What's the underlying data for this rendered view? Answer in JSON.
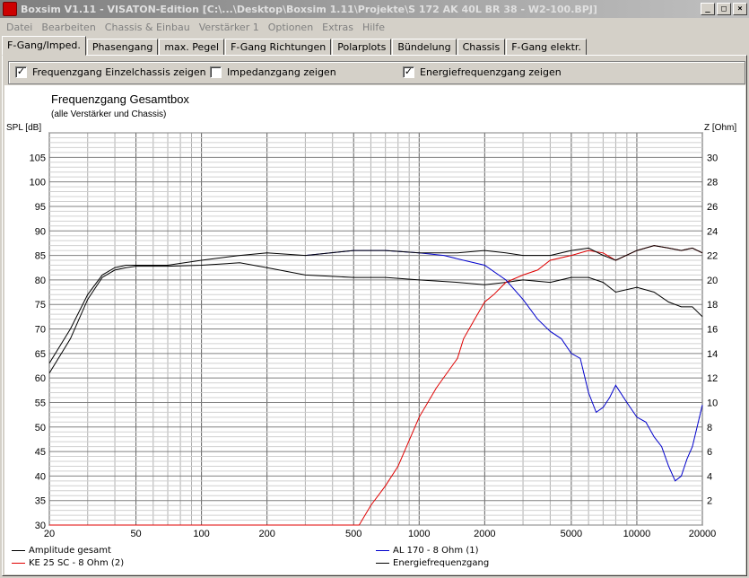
{
  "window": {
    "title": "Boxsim V1.11 - VISATON-Edition [C:\\...\\Desktop\\Boxsim 1.11\\Projekte\\S 172 AK 40L BR 38 - W2-100.BPJ]",
    "minimize": "_",
    "maximize": "□",
    "close": "×"
  },
  "menu": [
    "Datei",
    "Bearbeiten",
    "Chassis & Einbau",
    "Verstärker 1",
    "Optionen",
    "Extras",
    "Hilfe"
  ],
  "tabs": [
    "F-Gang/Imped.",
    "Phasengang",
    "max. Pegel",
    "F-Gang Richtungen",
    "Polarplots",
    "Bündelung",
    "Chassis",
    "F-Gang elektr."
  ],
  "options": [
    {
      "label": "Frequenzgang Einzelchassis zeigen",
      "checked": true,
      "mark": "✓"
    },
    {
      "label": "Impedanzgang zeigen",
      "checked": false,
      "mark": ""
    },
    {
      "label": "Energiefrequenzgang zeigen",
      "checked": true,
      "mark": "✓"
    }
  ],
  "chart_data": {
    "type": "line",
    "title": "Frequenzgang Gesamtbox",
    "subtitle": "(alle Verstärker und Chassis)",
    "ylabel": "SPL [dB]",
    "y2label": "Z [Ohm]",
    "xscale": "log",
    "xlim": [
      20,
      20000
    ],
    "ylim": [
      30,
      110
    ],
    "y2lim": [
      0,
      32
    ],
    "xticks": [
      20,
      50,
      100,
      200,
      500,
      1000,
      2000,
      5000,
      10000,
      20000
    ],
    "xticklabels": [
      "20",
      "50",
      "100",
      "200",
      "500",
      "1000",
      "2000",
      "5000",
      "10000",
      "20000"
    ],
    "yticks": [
      30,
      35,
      40,
      45,
      50,
      55,
      60,
      65,
      70,
      75,
      80,
      85,
      90,
      95,
      100,
      105
    ],
    "y2ticks": [
      2,
      4,
      6,
      8,
      10,
      12,
      14,
      16,
      18,
      20,
      22,
      24,
      26,
      28,
      30
    ],
    "grid": true,
    "series": [
      {
        "name": "Amplitude gesamt",
        "color": "#000000",
        "x": [
          20,
          25,
          30,
          35,
          40,
          45,
          50,
          70,
          100,
          150,
          200,
          300,
          500,
          700,
          1000,
          1500,
          2000,
          2500,
          3000,
          4000,
          5000,
          6000,
          7000,
          8000,
          10000,
          12000,
          14000,
          16000,
          18000,
          20000
        ],
        "y": [
          63,
          70,
          77,
          81,
          82.5,
          83,
          83,
          83,
          84,
          85,
          85.5,
          85,
          86,
          86,
          85.5,
          85.5,
          86,
          85.5,
          85,
          85,
          86,
          86.5,
          85,
          84,
          86,
          87,
          86.5,
          86,
          86.5,
          85.5
        ]
      },
      {
        "name": "AL 170 - 8 Ohm (1)",
        "color": "#0000cc",
        "x": [
          300,
          500,
          700,
          1000,
          1300,
          1600,
          2000,
          2500,
          3000,
          3500,
          4000,
          4500,
          5000,
          5500,
          6000,
          6500,
          7000,
          7500,
          8000,
          9000,
          10000,
          11000,
          12000,
          13000,
          14000,
          15000,
          16000,
          17000,
          18000,
          20000
        ],
        "y": [
          85,
          86,
          86,
          85.5,
          85,
          84,
          83,
          80,
          76,
          72,
          69.5,
          68,
          65,
          64,
          57,
          53,
          54,
          56,
          58.5,
          55,
          52,
          51,
          48,
          46,
          42,
          39,
          40,
          43.5,
          46,
          54.5
        ]
      },
      {
        "name": "KE 25 SC - 8 Ohm (2)",
        "color": "#e00000",
        "x": [
          20,
          300,
          530,
          600,
          700,
          800,
          1000,
          1200,
          1500,
          1600,
          1800,
          2000,
          2200,
          2500,
          3000,
          3500,
          4000,
          5000,
          6000,
          7000,
          8000,
          10000,
          12000,
          14000,
          16000,
          18000,
          20000
        ],
        "y": [
          30,
          30,
          30,
          34,
          38,
          42,
          52,
          58,
          64,
          68,
          72,
          75.5,
          77,
          79.5,
          81,
          82,
          84,
          85,
          86,
          85.5,
          84,
          86,
          87,
          86.5,
          86,
          86.5,
          85.5
        ]
      },
      {
        "name": "Energiefrequenzgang",
        "color": "#000000",
        "x": [
          20,
          25,
          30,
          35,
          40,
          45,
          50,
          70,
          100,
          150,
          200,
          300,
          500,
          700,
          1000,
          1500,
          2000,
          2500,
          3000,
          4000,
          5000,
          6000,
          7000,
          8000,
          10000,
          12000,
          14000,
          16000,
          18000,
          20000
        ],
        "y": [
          61,
          68,
          76,
          80.5,
          82,
          82.5,
          82.8,
          82.8,
          83,
          83.5,
          82.5,
          81,
          80.5,
          80.5,
          80,
          79.5,
          79,
          79.5,
          80,
          79.5,
          80.5,
          80.5,
          79.5,
          77.5,
          78.5,
          77.5,
          75.5,
          74.5,
          74.5,
          72.5
        ]
      }
    ]
  }
}
